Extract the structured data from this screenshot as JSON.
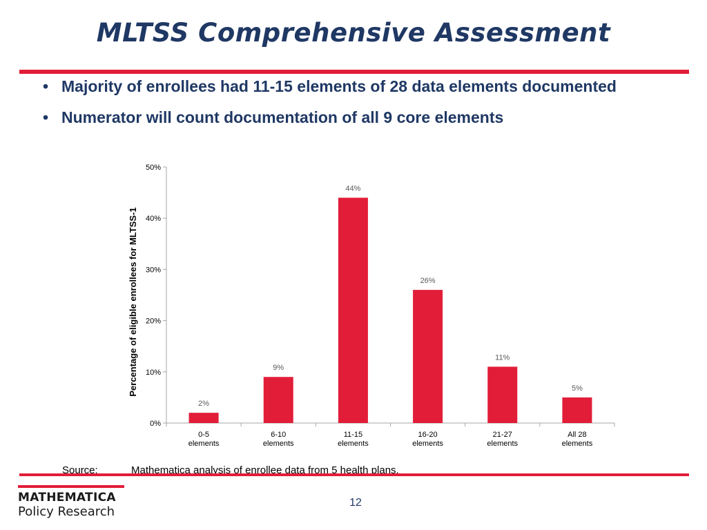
{
  "slide": {
    "title": "MLTSS Comprehensive Assessment",
    "bullets": [
      "Majority of enrollees had 11-15 elements of 28 data elements documented",
      "Numerator will count documentation of all 9 core elements"
    ],
    "bullet_symbol": "•",
    "source_label": "Source:",
    "source_text": "Mathematica analysis of enrollee data from 5 health plans.",
    "page_number": "12",
    "logo_line1": "MATHEMATICA",
    "logo_line2": "Policy Research",
    "colors": {
      "title": "#1f3864",
      "accent": "#e21d38",
      "bar": "#e21d38",
      "label": "#595959"
    }
  },
  "chart_data": {
    "type": "bar",
    "title": "",
    "xlabel": "",
    "ylabel": "Percentage of eligible enrollees for MLTSS-1",
    "categories": [
      [
        "0-5",
        "elements"
      ],
      [
        "6-10",
        "elements"
      ],
      [
        "11-15",
        "elements"
      ],
      [
        "16-20",
        "elements"
      ],
      [
        "21-27",
        "elements"
      ],
      [
        "All 28",
        "elements"
      ]
    ],
    "values": [
      2,
      9,
      44,
      26,
      11,
      5
    ],
    "value_labels": [
      "2%",
      "9%",
      "44%",
      "26%",
      "11%",
      "5%"
    ],
    "ylim": [
      0,
      50
    ],
    "yticks": [
      0,
      10,
      20,
      30,
      40,
      50
    ],
    "ytick_labels": [
      "0%",
      "10%",
      "20%",
      "30%",
      "40%",
      "50%"
    ],
    "grid": false,
    "legend": "none"
  }
}
